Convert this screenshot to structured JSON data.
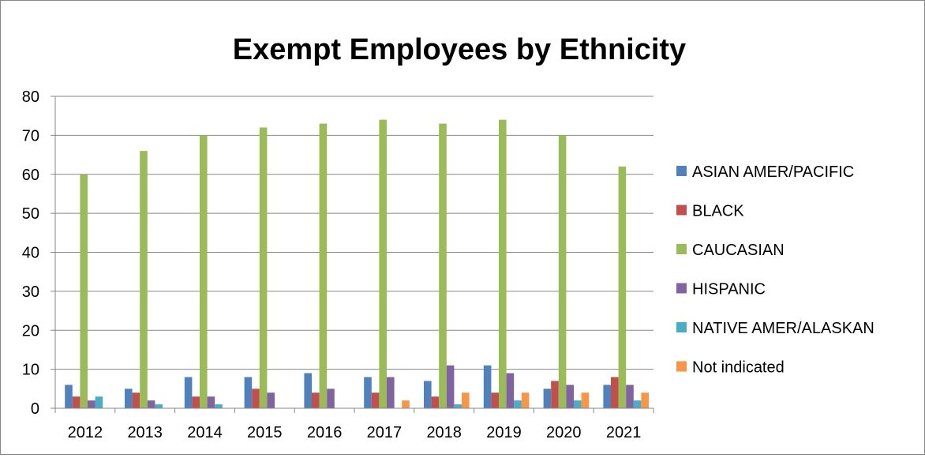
{
  "chart_data": {
    "type": "bar",
    "title": "Exempt Employees by Ethnicity",
    "xlabel": "",
    "ylabel": "",
    "ylim": [
      0,
      80
    ],
    "yticks": [
      0,
      10,
      20,
      30,
      40,
      50,
      60,
      70,
      80
    ],
    "grid": true,
    "legend_position": "right",
    "categories": [
      "2012",
      "2013",
      "2014",
      "2015",
      "2016",
      "2017",
      "2018",
      "2019",
      "2020",
      "2021"
    ],
    "series": [
      {
        "name": "ASIAN AMER/PACIFIC",
        "color": "#4F81BD",
        "values": [
          6,
          5,
          8,
          8,
          9,
          8,
          7,
          11,
          5,
          6
        ]
      },
      {
        "name": "BLACK",
        "color": "#C0504D",
        "values": [
          3,
          4,
          3,
          5,
          4,
          4,
          3,
          4,
          7,
          8
        ]
      },
      {
        "name": "CAUCASIAN",
        "color": "#9BBB59",
        "values": [
          60,
          66,
          70,
          72,
          73,
          74,
          73,
          74,
          70,
          62
        ]
      },
      {
        "name": "HISPANIC",
        "color": "#8064A2",
        "values": [
          2,
          2,
          3,
          4,
          5,
          8,
          11,
          9,
          6,
          6
        ]
      },
      {
        "name": "NATIVE AMER/ALASKAN",
        "color": "#4BACC6",
        "values": [
          3,
          1,
          1,
          0,
          0,
          0,
          1,
          2,
          2,
          2
        ]
      },
      {
        "name": "Not indicated",
        "color": "#F79646",
        "values": [
          0,
          0,
          0,
          0,
          0,
          2,
          4,
          4,
          4,
          4
        ]
      }
    ]
  }
}
